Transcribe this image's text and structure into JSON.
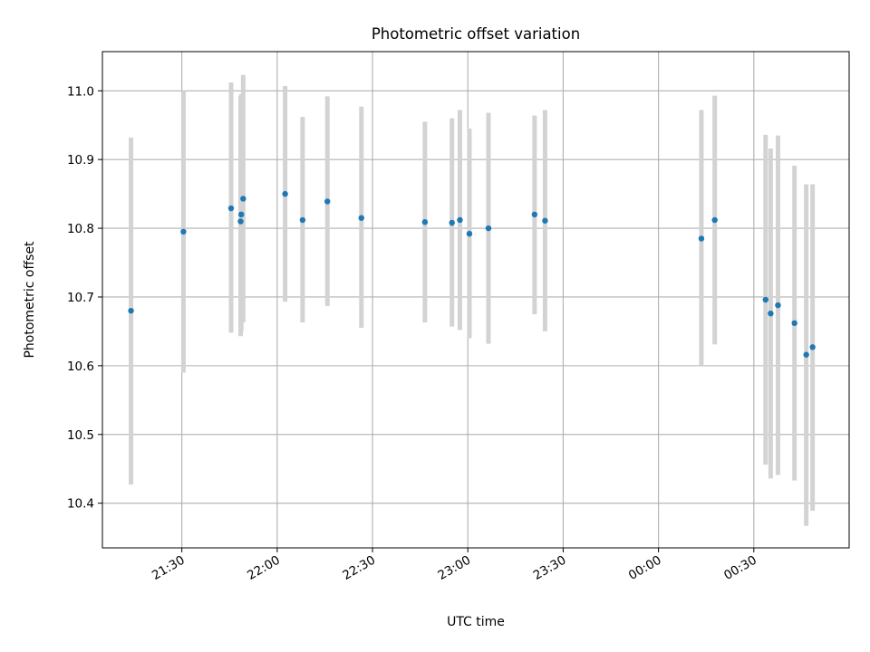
{
  "chart_data": {
    "type": "scatter",
    "title": "Photometric offset variation",
    "xlabel": "UTC time",
    "ylabel": "Photometric offset",
    "x_unit": "minutes after 21:00 UTC",
    "xlim": [
      5,
      240
    ],
    "ylim": [
      10.335,
      11.057
    ],
    "grid": true,
    "legend": "none",
    "x_ticks": [
      {
        "value": 30,
        "label": "21:30"
      },
      {
        "value": 60,
        "label": "22:00"
      },
      {
        "value": 90,
        "label": "22:30"
      },
      {
        "value": 120,
        "label": "23:00"
      },
      {
        "value": 150,
        "label": "23:30"
      },
      {
        "value": 180,
        "label": "00:00"
      },
      {
        "value": 210,
        "label": "00:30"
      }
    ],
    "y_ticks": [
      {
        "value": 10.4,
        "label": "10.4"
      },
      {
        "value": 10.5,
        "label": "10.5"
      },
      {
        "value": 10.6,
        "label": "10.6"
      },
      {
        "value": 10.7,
        "label": "10.7"
      },
      {
        "value": 10.8,
        "label": "10.8"
      },
      {
        "value": 10.9,
        "label": "10.9"
      },
      {
        "value": 11.0,
        "label": "11.0"
      }
    ],
    "colors": {
      "point": "#1f77b4",
      "errorbar": "#d3d3d3",
      "grid": "#b0b0b0"
    },
    "points": [
      {
        "x": 14.0,
        "y": 10.68,
        "lo": 10.427,
        "hi": 10.932
      },
      {
        "x": 30.5,
        "y": 10.795,
        "lo": 10.59,
        "hi": 11.0
      },
      {
        "x": 45.5,
        "y": 10.829,
        "lo": 10.648,
        "hi": 11.012
      },
      {
        "x": 48.5,
        "y": 10.81,
        "lo": 10.643,
        "hi": 10.992
      },
      {
        "x": 48.7,
        "y": 10.82,
        "lo": 10.65,
        "hi": 10.995
      },
      {
        "x": 49.3,
        "y": 10.843,
        "lo": 10.663,
        "hi": 11.023
      },
      {
        "x": 62.5,
        "y": 10.85,
        "lo": 10.693,
        "hi": 11.007
      },
      {
        "x": 68.0,
        "y": 10.812,
        "lo": 10.663,
        "hi": 10.962
      },
      {
        "x": 75.8,
        "y": 10.839,
        "lo": 10.687,
        "hi": 10.992
      },
      {
        "x": 86.5,
        "y": 10.815,
        "lo": 10.655,
        "hi": 10.977
      },
      {
        "x": 106.5,
        "y": 10.809,
        "lo": 10.663,
        "hi": 10.955
      },
      {
        "x": 115.0,
        "y": 10.808,
        "lo": 10.657,
        "hi": 10.96
      },
      {
        "x": 117.5,
        "y": 10.812,
        "lo": 10.652,
        "hi": 10.972
      },
      {
        "x": 120.5,
        "y": 10.792,
        "lo": 10.64,
        "hi": 10.945
      },
      {
        "x": 126.5,
        "y": 10.8,
        "lo": 10.632,
        "hi": 10.968
      },
      {
        "x": 141.0,
        "y": 10.82,
        "lo": 10.675,
        "hi": 10.964
      },
      {
        "x": 144.3,
        "y": 10.811,
        "lo": 10.65,
        "hi": 10.972
      },
      {
        "x": 193.5,
        "y": 10.785,
        "lo": 10.6,
        "hi": 10.972
      },
      {
        "x": 197.7,
        "y": 10.812,
        "lo": 10.631,
        "hi": 10.993
      },
      {
        "x": 213.7,
        "y": 10.696,
        "lo": 10.456,
        "hi": 10.936
      },
      {
        "x": 215.3,
        "y": 10.676,
        "lo": 10.436,
        "hi": 10.916
      },
      {
        "x": 217.6,
        "y": 10.688,
        "lo": 10.441,
        "hi": 10.935
      },
      {
        "x": 222.8,
        "y": 10.662,
        "lo": 10.433,
        "hi": 10.891
      },
      {
        "x": 226.5,
        "y": 10.616,
        "lo": 10.367,
        "hi": 10.864
      },
      {
        "x": 228.5,
        "y": 10.627,
        "lo": 10.389,
        "hi": 10.864
      }
    ]
  }
}
